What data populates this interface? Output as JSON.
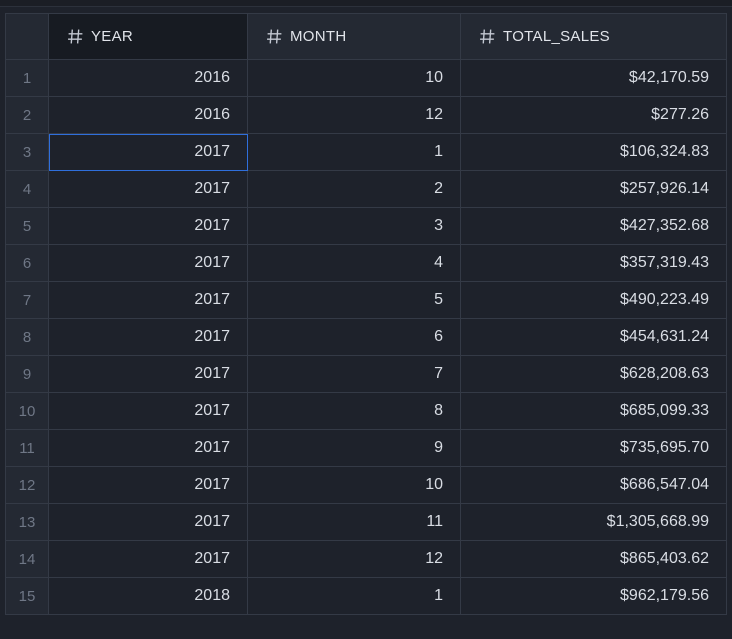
{
  "columns": [
    {
      "label": "YEAR",
      "icon": "hash-icon"
    },
    {
      "label": "MONTH",
      "icon": "hash-icon"
    },
    {
      "label": "TOTAL_SALES",
      "icon": "hash-icon"
    }
  ],
  "rows": [
    {
      "n": "1",
      "year": "2016",
      "month": "10",
      "total_sales": "$42,170.59"
    },
    {
      "n": "2",
      "year": "2016",
      "month": "12",
      "total_sales": "$277.26"
    },
    {
      "n": "3",
      "year": "2017",
      "month": "1",
      "total_sales": "$106,324.83"
    },
    {
      "n": "4",
      "year": "2017",
      "month": "2",
      "total_sales": "$257,926.14"
    },
    {
      "n": "5",
      "year": "2017",
      "month": "3",
      "total_sales": "$427,352.68"
    },
    {
      "n": "6",
      "year": "2017",
      "month": "4",
      "total_sales": "$357,319.43"
    },
    {
      "n": "7",
      "year": "2017",
      "month": "5",
      "total_sales": "$490,223.49"
    },
    {
      "n": "8",
      "year": "2017",
      "month": "6",
      "total_sales": "$454,631.24"
    },
    {
      "n": "9",
      "year": "2017",
      "month": "7",
      "total_sales": "$628,208.63"
    },
    {
      "n": "10",
      "year": "2017",
      "month": "8",
      "total_sales": "$685,099.33"
    },
    {
      "n": "11",
      "year": "2017",
      "month": "9",
      "total_sales": "$735,695.70"
    },
    {
      "n": "12",
      "year": "2017",
      "month": "10",
      "total_sales": "$686,547.04"
    },
    {
      "n": "13",
      "year": "2017",
      "month": "11",
      "total_sales": "$1,305,668.99"
    },
    {
      "n": "14",
      "year": "2017",
      "month": "12",
      "total_sales": "$865,403.62"
    },
    {
      "n": "15",
      "year": "2018",
      "month": "1",
      "total_sales": "$962,179.56"
    }
  ],
  "selection": {
    "row": 3,
    "column": "YEAR"
  },
  "colors": {
    "background": "#1e222b",
    "header_background": "#242933",
    "selected_header_background": "#171b22",
    "grid_line": "#343a46",
    "selection_outline": "#2f6fdc",
    "row_number_text": "#6f7786",
    "cell_text": "#d9dde4"
  }
}
